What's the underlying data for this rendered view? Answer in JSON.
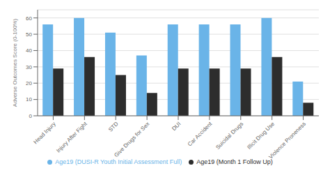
{
  "chart_data": {
    "type": "bar",
    "categories": [
      "Head Injury",
      "Injury After Fight",
      "STD",
      "Give Drugs for Sex",
      "DUI",
      "Car Accident",
      "Suicidal Drugs",
      "Illicit Drug Use",
      "Violence Proneness"
    ],
    "series": [
      {
        "name": "Age19 (DUSI-R Youth Initial Assessment Full)",
        "color": "#6ab4e8",
        "values": [
          56,
          60,
          51,
          37,
          56,
          56,
          56,
          60,
          21
        ]
      },
      {
        "name": "Age19 (Month 1 Follow Up)",
        "color": "#2d2d2d",
        "values": [
          29,
          36,
          25,
          14,
          29,
          29,
          29,
          36,
          8
        ]
      }
    ],
    "ylabel": "Adverse Outcomes Score (0-100%)",
    "ylim": [
      0,
      65
    ],
    "yticks": [
      0,
      10,
      20,
      30,
      40,
      50,
      60
    ],
    "grid": true,
    "legend": "bottom"
  }
}
